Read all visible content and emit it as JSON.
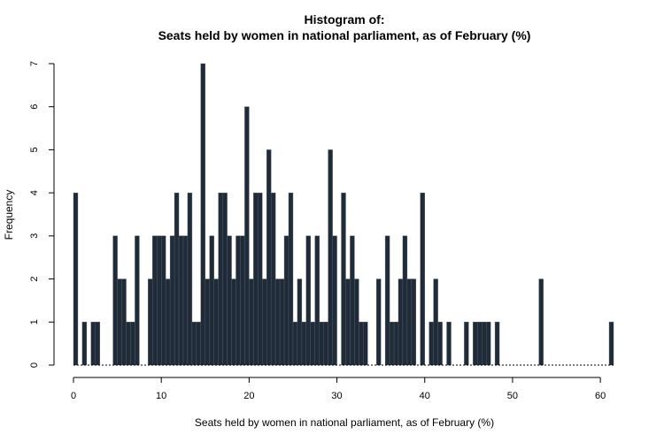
{
  "chart_data": {
    "type": "bar",
    "title_line1": "Histogram of:",
    "title_line2": "Seats held by women in national parliament, as of February (%)",
    "xlabel": "Seats held by women in national parliament, as of February (%)",
    "ylabel": "Frequency",
    "xlim": [
      0,
      62
    ],
    "ylim": [
      0,
      7
    ],
    "x_ticks": [
      0,
      10,
      20,
      30,
      40,
      50,
      60
    ],
    "y_ticks": [
      0,
      1,
      2,
      3,
      4,
      5,
      6,
      7
    ],
    "bin_width": 0.5,
    "bar_color": "#1f2b38",
    "bins": [
      {
        "x": 0.0,
        "count": 4
      },
      {
        "x": 1.0,
        "count": 1
      },
      {
        "x": 2.0,
        "count": 1
      },
      {
        "x": 2.5,
        "count": 1
      },
      {
        "x": 4.5,
        "count": 3
      },
      {
        "x": 5.0,
        "count": 2
      },
      {
        "x": 5.5,
        "count": 2
      },
      {
        "x": 6.0,
        "count": 1
      },
      {
        "x": 6.5,
        "count": 1
      },
      {
        "x": 7.0,
        "count": 3
      },
      {
        "x": 8.5,
        "count": 2
      },
      {
        "x": 9.0,
        "count": 3
      },
      {
        "x": 9.5,
        "count": 3
      },
      {
        "x": 10.0,
        "count": 3
      },
      {
        "x": 10.5,
        "count": 2
      },
      {
        "x": 11.0,
        "count": 3
      },
      {
        "x": 11.5,
        "count": 4
      },
      {
        "x": 12.0,
        "count": 3
      },
      {
        "x": 12.5,
        "count": 3
      },
      {
        "x": 13.0,
        "count": 4
      },
      {
        "x": 13.5,
        "count": 1
      },
      {
        "x": 14.0,
        "count": 1
      },
      {
        "x": 14.5,
        "count": 7
      },
      {
        "x": 15.0,
        "count": 2
      },
      {
        "x": 15.5,
        "count": 3
      },
      {
        "x": 16.0,
        "count": 2
      },
      {
        "x": 16.5,
        "count": 4
      },
      {
        "x": 17.0,
        "count": 4
      },
      {
        "x": 17.5,
        "count": 3
      },
      {
        "x": 18.0,
        "count": 2
      },
      {
        "x": 18.5,
        "count": 3
      },
      {
        "x": 19.0,
        "count": 3
      },
      {
        "x": 19.5,
        "count": 6
      },
      {
        "x": 20.0,
        "count": 2
      },
      {
        "x": 20.5,
        "count": 4
      },
      {
        "x": 21.0,
        "count": 4
      },
      {
        "x": 21.5,
        "count": 2
      },
      {
        "x": 22.0,
        "count": 5
      },
      {
        "x": 22.5,
        "count": 4
      },
      {
        "x": 23.0,
        "count": 2
      },
      {
        "x": 23.5,
        "count": 2
      },
      {
        "x": 24.0,
        "count": 3
      },
      {
        "x": 24.5,
        "count": 4
      },
      {
        "x": 25.0,
        "count": 1
      },
      {
        "x": 25.5,
        "count": 2
      },
      {
        "x": 26.0,
        "count": 1
      },
      {
        "x": 26.5,
        "count": 3
      },
      {
        "x": 27.0,
        "count": 1
      },
      {
        "x": 27.5,
        "count": 3
      },
      {
        "x": 28.0,
        "count": 1
      },
      {
        "x": 28.5,
        "count": 1
      },
      {
        "x": 29.0,
        "count": 5
      },
      {
        "x": 29.5,
        "count": 3
      },
      {
        "x": 30.5,
        "count": 4
      },
      {
        "x": 31.0,
        "count": 2
      },
      {
        "x": 31.5,
        "count": 3
      },
      {
        "x": 32.0,
        "count": 2
      },
      {
        "x": 32.5,
        "count": 1
      },
      {
        "x": 33.0,
        "count": 1
      },
      {
        "x": 34.5,
        "count": 2
      },
      {
        "x": 35.5,
        "count": 3
      },
      {
        "x": 36.0,
        "count": 1
      },
      {
        "x": 36.5,
        "count": 1
      },
      {
        "x": 37.0,
        "count": 2
      },
      {
        "x": 37.5,
        "count": 3
      },
      {
        "x": 38.0,
        "count": 2
      },
      {
        "x": 38.5,
        "count": 2
      },
      {
        "x": 39.5,
        "count": 4
      },
      {
        "x": 40.5,
        "count": 1
      },
      {
        "x": 41.0,
        "count": 2
      },
      {
        "x": 41.5,
        "count": 1
      },
      {
        "x": 42.5,
        "count": 1
      },
      {
        "x": 44.5,
        "count": 1
      },
      {
        "x": 45.5,
        "count": 1
      },
      {
        "x": 46.0,
        "count": 1
      },
      {
        "x": 46.5,
        "count": 1
      },
      {
        "x": 47.0,
        "count": 1
      },
      {
        "x": 48.0,
        "count": 1
      },
      {
        "x": 53.0,
        "count": 2
      },
      {
        "x": 61.0,
        "count": 1
      }
    ]
  }
}
